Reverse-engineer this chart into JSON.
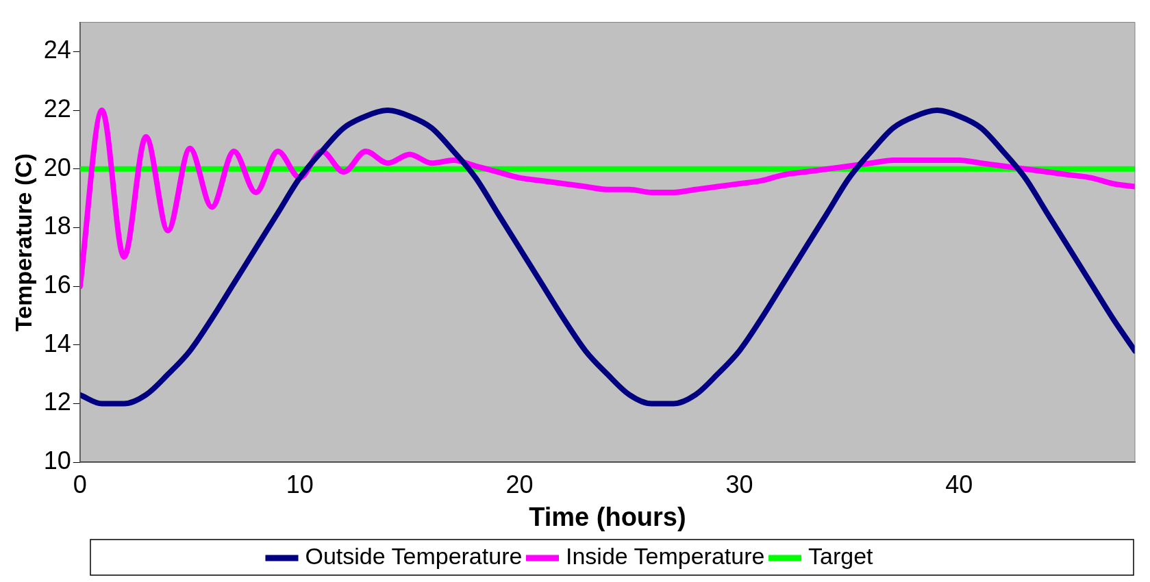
{
  "chart_data": {
    "type": "line",
    "xlabel": "Time (hours)",
    "ylabel": "Temperature (C)",
    "x": [
      0,
      1,
      2,
      3,
      4,
      5,
      6,
      7,
      8,
      9,
      10,
      11,
      12,
      13,
      14,
      15,
      16,
      17,
      18,
      19,
      20,
      21,
      22,
      23,
      24,
      25,
      26,
      27,
      28,
      29,
      30,
      31,
      32,
      33,
      34,
      35,
      36,
      37,
      38,
      39,
      40,
      41,
      42,
      43,
      44,
      45,
      46,
      47,
      48
    ],
    "series": [
      {
        "name": "Outside Temperature",
        "color": "#000080",
        "values": [
          12.3,
          12.0,
          12.0,
          12.3,
          13.0,
          13.8,
          14.9,
          16.1,
          17.3,
          18.5,
          19.7,
          20.6,
          21.4,
          21.8,
          22.0,
          21.8,
          21.4,
          20.6,
          19.7,
          18.5,
          17.3,
          16.1,
          14.9,
          13.8,
          13.0,
          12.3,
          12.0,
          12.0,
          12.3,
          13.0,
          13.8,
          14.9,
          16.1,
          17.3,
          18.5,
          19.7,
          20.6,
          21.4,
          21.8,
          22.0,
          21.8,
          21.4,
          20.6,
          19.7,
          18.5,
          17.3,
          16.1,
          14.9,
          13.8
        ]
      },
      {
        "name": "Inside Temperature",
        "color": "#ff00ff",
        "values": [
          16.0,
          22.0,
          17.0,
          21.1,
          17.9,
          20.7,
          18.7,
          20.6,
          19.2,
          20.6,
          19.7,
          20.6,
          19.9,
          20.6,
          20.2,
          20.5,
          20.2,
          20.3,
          20.1,
          19.9,
          19.7,
          19.6,
          19.5,
          19.4,
          19.3,
          19.3,
          19.2,
          19.2,
          19.3,
          19.4,
          19.5,
          19.6,
          19.8,
          19.9,
          20.0,
          20.1,
          20.2,
          20.3,
          20.3,
          20.3,
          20.3,
          20.2,
          20.1,
          20.0,
          19.9,
          19.8,
          19.7,
          19.5,
          19.4
        ]
      },
      {
        "name": "Target",
        "color": "#00ff00",
        "x": [
          0,
          48
        ],
        "values": [
          20,
          20
        ]
      }
    ],
    "xlim": [
      0,
      48
    ],
    "xticks": [
      0,
      10,
      20,
      30,
      40
    ],
    "ylim": [
      10,
      25
    ],
    "yticks": [
      10,
      12,
      14,
      16,
      18,
      20,
      22,
      24
    ],
    "grid": false,
    "legend": "bottom",
    "marker": "none",
    "line_style": "solid"
  }
}
